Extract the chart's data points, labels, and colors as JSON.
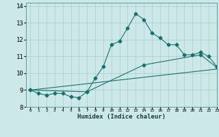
{
  "xlabel": "Humidex (Indice chaleur)",
  "ylabel": "",
  "background_color": "#cce8e8",
  "grid_color": "#aacccc",
  "line_color": "#1a6e6e",
  "xlim": [
    -0.5,
    23
  ],
  "ylim": [
    8,
    14.2
  ],
  "yticks": [
    8,
    9,
    10,
    11,
    12,
    13,
    14
  ],
  "xticks": [
    0,
    1,
    2,
    3,
    4,
    5,
    6,
    7,
    8,
    9,
    10,
    11,
    12,
    13,
    14,
    15,
    16,
    17,
    18,
    19,
    20,
    21,
    22,
    23
  ],
  "line1_x": [
    0,
    1,
    2,
    3,
    4,
    5,
    6,
    7,
    8,
    9,
    10,
    11,
    12,
    13,
    14,
    15,
    16,
    17,
    18,
    19,
    20,
    21,
    22,
    23
  ],
  "line1_y": [
    9.0,
    8.8,
    8.7,
    8.8,
    8.8,
    8.6,
    8.55,
    8.9,
    9.7,
    10.4,
    11.7,
    11.9,
    12.7,
    13.55,
    13.2,
    12.4,
    12.1,
    11.7,
    11.7,
    11.1,
    11.1,
    11.25,
    11.0,
    10.4
  ],
  "line2_x": [
    0,
    7,
    14,
    21,
    23
  ],
  "line2_y": [
    9.0,
    8.9,
    10.5,
    11.1,
    10.35
  ],
  "line3_x": [
    0,
    23
  ],
  "line3_y": [
    9.0,
    10.25
  ]
}
